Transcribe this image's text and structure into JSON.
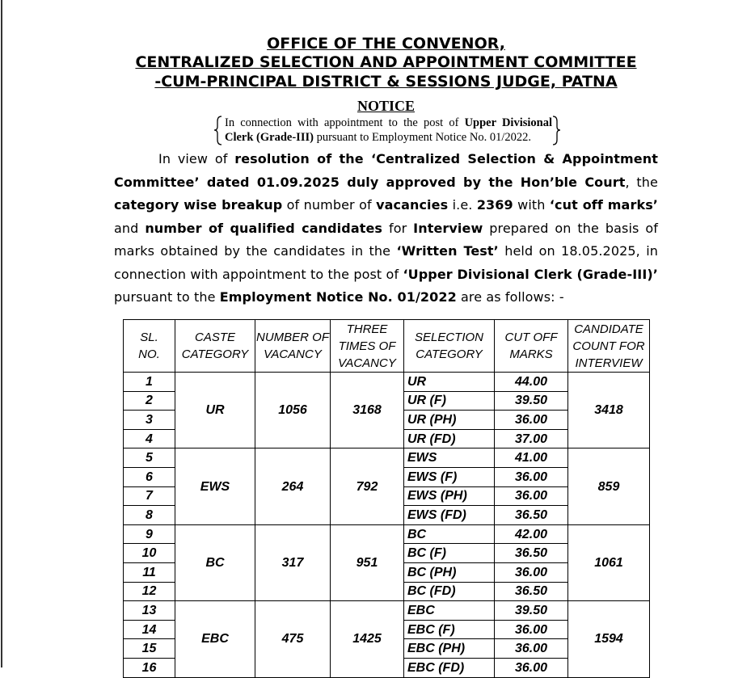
{
  "header": {
    "lines": [
      "OFFICE OF THE CONVENOR,",
      "CENTRALIZED SELECTION AND APPOINTMENT COMMITTEE",
      "-CUM-PRINCIPAL DISTRICT & SESSIONS JUDGE, PATNA"
    ]
  },
  "notice": {
    "title": "NOTICE",
    "subject": [
      {
        "text": "In connection with appointment to the post of ",
        "bold": false
      },
      {
        "text": "Upper Divisional Clerk (Grade-III)",
        "bold": true
      },
      {
        "text": " pursuant to Employment Notice No. 01/2022.",
        "bold": false
      }
    ],
    "paragraph": [
      {
        "text": "In view of ",
        "bold": false
      },
      {
        "text": "resolution of the ‘Centralized Selection & Appointment Committee’ dated 01.09.2025 duly approved by the Hon’ble Court",
        "bold": true
      },
      {
        "text": ", the ",
        "bold": false
      },
      {
        "text": "category wise breakup",
        "bold": true
      },
      {
        "text": " of number of ",
        "bold": false
      },
      {
        "text": "vacancies",
        "bold": true
      },
      {
        "text": " i.e. ",
        "bold": false
      },
      {
        "text": "2369",
        "bold": true
      },
      {
        "text": " with ",
        "bold": false
      },
      {
        "text": "‘cut off marks’",
        "bold": true
      },
      {
        "text": " and ",
        "bold": false
      },
      {
        "text": "number of qualified candidates",
        "bold": true
      },
      {
        "text": " for ",
        "bold": false
      },
      {
        "text": "Interview",
        "bold": true
      },
      {
        "text": " prepared on the basis of marks obtained by the candidates in the ",
        "bold": false
      },
      {
        "text": "‘Written Test’",
        "bold": true
      },
      {
        "text": " held on 18.05.2025, in connection with appointment to the post of ",
        "bold": false
      },
      {
        "text": "‘Upper Divisional Clerk (Grade-III)’",
        "bold": true
      },
      {
        "text": " pursuant to the ",
        "bold": false
      },
      {
        "text": "Employment Notice No. 01/2022",
        "bold": true
      },
      {
        "text": " are as follows: -",
        "bold": false
      }
    ]
  },
  "table": {
    "columns": [
      "SL.\nNO.",
      "CASTE\nCATEGORY",
      "NUMBER OF\nVACANCY",
      "THREE\nTIMES OF\nVACANCY",
      "SELECTION\nCATEGORY",
      "CUT OFF\nMARKS",
      "CANDIDATE\nCOUNT FOR\nINTERVIEW"
    ],
    "groups": [
      {
        "caste": "UR",
        "vacancy": "1056",
        "three_times": "3168",
        "count": "3418",
        "rows": [
          {
            "sl": "1",
            "selection": "UR",
            "cutoff": "44.00"
          },
          {
            "sl": "2",
            "selection": "UR (F)",
            "cutoff": "39.50"
          },
          {
            "sl": "3",
            "selection": "UR (PH)",
            "cutoff": "36.00"
          },
          {
            "sl": "4",
            "selection": "UR (FD)",
            "cutoff": "37.00"
          }
        ]
      },
      {
        "caste": "EWS",
        "vacancy": "264",
        "three_times": "792",
        "count": "859",
        "rows": [
          {
            "sl": "5",
            "selection": "EWS",
            "cutoff": "41.00"
          },
          {
            "sl": "6",
            "selection": "EWS (F)",
            "cutoff": "36.00"
          },
          {
            "sl": "7",
            "selection": "EWS (PH)",
            "cutoff": "36.00"
          },
          {
            "sl": "8",
            "selection": "EWS (FD)",
            "cutoff": "36.50"
          }
        ]
      },
      {
        "caste": "BC",
        "vacancy": "317",
        "three_times": "951",
        "count": "1061",
        "rows": [
          {
            "sl": "9",
            "selection": "BC",
            "cutoff": "42.00"
          },
          {
            "sl": "10",
            "selection": "BC (F)",
            "cutoff": "36.50"
          },
          {
            "sl": "11",
            "selection": "BC (PH)",
            "cutoff": "36.00"
          },
          {
            "sl": "12",
            "selection": "BC (FD)",
            "cutoff": "36.50"
          }
        ]
      },
      {
        "caste": "EBC",
        "vacancy": "475",
        "three_times": "1425",
        "count": "1594",
        "rows": [
          {
            "sl": "13",
            "selection": "EBC",
            "cutoff": "39.50"
          },
          {
            "sl": "14",
            "selection": "EBC (F)",
            "cutoff": "36.00"
          },
          {
            "sl": "15",
            "selection": "EBC (PH)",
            "cutoff": "36.00"
          },
          {
            "sl": "16",
            "selection": "EBC (FD)",
            "cutoff": "36.00"
          }
        ]
      }
    ]
  }
}
